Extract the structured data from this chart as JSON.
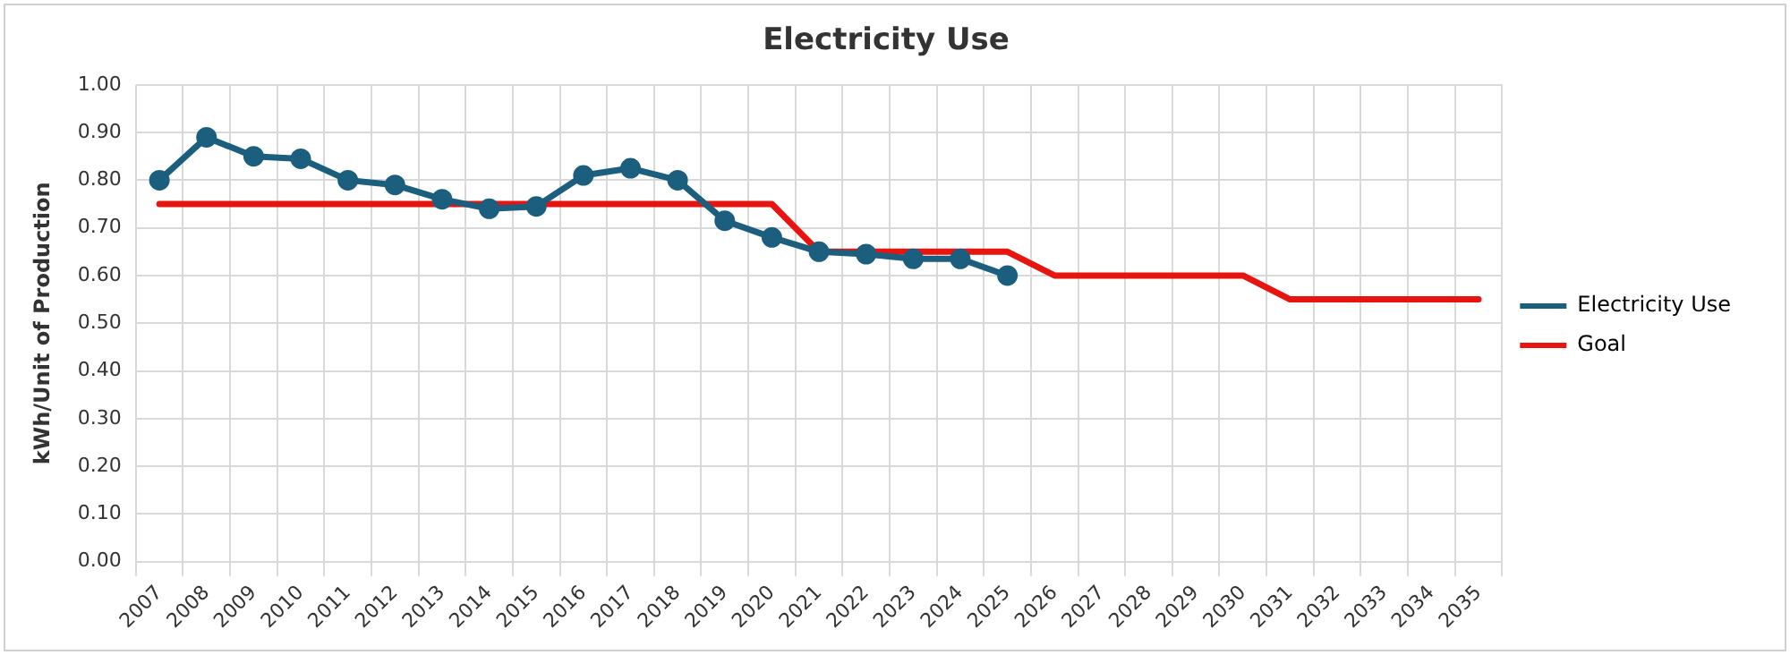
{
  "chart_data": {
    "type": "line",
    "title": "Electricity Use",
    "ylabel": "kWh/Unit of Production",
    "categories": [
      "2007",
      "2008",
      "2009",
      "2010",
      "2011",
      "2012",
      "2013",
      "2014",
      "2015",
      "2016",
      "2017",
      "2018",
      "2019",
      "2020",
      "2021",
      "2022",
      "2023",
      "2024",
      "2025",
      "2026",
      "2027",
      "2028",
      "2029",
      "2030",
      "2031",
      "2032",
      "2033",
      "2034",
      "2035"
    ],
    "series": [
      {
        "name": "Electricity Use",
        "color": "#1b5e7e",
        "marker": "circle",
        "values": [
          0.8,
          0.89,
          0.85,
          0.845,
          0.8,
          0.79,
          0.76,
          0.74,
          0.745,
          0.81,
          0.825,
          0.8,
          0.715,
          0.68,
          0.65,
          0.645,
          0.635,
          0.635,
          0.6,
          null,
          null,
          null,
          null,
          null,
          null,
          null,
          null,
          null,
          null
        ]
      },
      {
        "name": "Goal",
        "color": "#e8140f",
        "marker": "none",
        "values": [
          0.75,
          0.75,
          0.75,
          0.75,
          0.75,
          0.75,
          0.75,
          0.75,
          0.75,
          0.75,
          0.75,
          0.75,
          0.75,
          0.75,
          0.65,
          0.65,
          0.65,
          0.65,
          0.65,
          0.6,
          0.6,
          0.6,
          0.6,
          0.6,
          0.55,
          0.55,
          0.55,
          0.55,
          0.55
        ]
      }
    ],
    "ylim": [
      0,
      1
    ],
    "yticks": [
      {
        "value": 0,
        "label": "0.00"
      },
      {
        "value": 0.1,
        "label": "0.10"
      },
      {
        "value": 0.2,
        "label": "0.20"
      },
      {
        "value": 0.3,
        "label": "0.30"
      },
      {
        "value": 0.4,
        "label": "0.40"
      },
      {
        "value": 0.5,
        "label": "0.50"
      },
      {
        "value": 0.6,
        "label": "0.60"
      },
      {
        "value": 0.7,
        "label": "0.70"
      },
      {
        "value": 0.8,
        "label": "0.80"
      },
      {
        "value": 0.9,
        "label": "0.90"
      },
      {
        "value": 1,
        "label": "1.00"
      }
    ],
    "grid": true,
    "legend": "right",
    "line_style": "solid"
  }
}
